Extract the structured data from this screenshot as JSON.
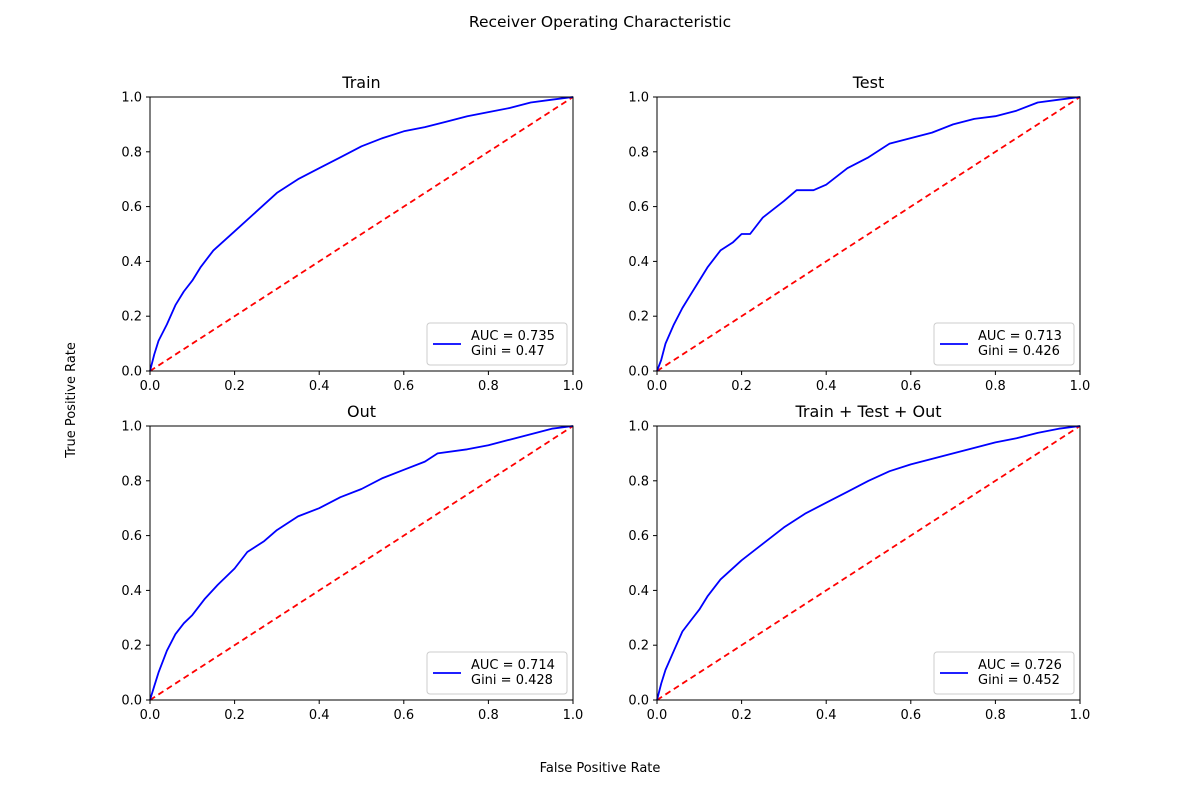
{
  "figure": {
    "title": "Receiver Operating Characteristic",
    "xlabel": "False Positive Rate",
    "ylabel": "True Positive Rate"
  },
  "colors": {
    "roc_line": "#0000ff",
    "reference_line": "#ff0000"
  },
  "chart_data": [
    {
      "type": "line",
      "title": "Train",
      "xlim": [
        0,
        1
      ],
      "ylim": [
        0,
        1
      ],
      "x_ticks": [
        "0.0",
        "0.2",
        "0.4",
        "0.6",
        "0.8",
        "1.0"
      ],
      "y_ticks": [
        "0.0",
        "0.2",
        "0.4",
        "0.6",
        "0.8",
        "1.0"
      ],
      "legend": {
        "placement": "lower-right",
        "lines": [
          "AUC = 0.735",
          "Gini = 0.47"
        ]
      },
      "series": [
        {
          "name": "AUC = 0.735",
          "x": [
            0,
            0.01,
            0.02,
            0.04,
            0.06,
            0.08,
            0.1,
            0.12,
            0.15,
            0.2,
            0.25,
            0.3,
            0.35,
            0.4,
            0.45,
            0.5,
            0.55,
            0.6,
            0.65,
            0.7,
            0.75,
            0.8,
            0.85,
            0.9,
            0.95,
            1.0
          ],
          "y": [
            0,
            0.06,
            0.11,
            0.17,
            0.24,
            0.29,
            0.33,
            0.38,
            0.44,
            0.51,
            0.58,
            0.65,
            0.7,
            0.74,
            0.78,
            0.82,
            0.85,
            0.875,
            0.89,
            0.91,
            0.93,
            0.945,
            0.96,
            0.98,
            0.99,
            1.0
          ]
        },
        {
          "name": "",
          "x": [
            0,
            1
          ],
          "y": [
            0,
            1
          ]
        }
      ]
    },
    {
      "type": "line",
      "title": "Test",
      "xlim": [
        0,
        1
      ],
      "ylim": [
        0,
        1
      ],
      "x_ticks": [
        "0.0",
        "0.2",
        "0.4",
        "0.6",
        "0.8",
        "1.0"
      ],
      "y_ticks": [
        "0.0",
        "0.2",
        "0.4",
        "0.6",
        "0.8",
        "1.0"
      ],
      "legend": {
        "placement": "lower-right",
        "lines": [
          "AUC = 0.713",
          "Gini = 0.426"
        ]
      },
      "series": [
        {
          "name": "AUC = 0.713",
          "x": [
            0,
            0.01,
            0.02,
            0.04,
            0.06,
            0.08,
            0.1,
            0.12,
            0.15,
            0.18,
            0.2,
            0.22,
            0.25,
            0.3,
            0.33,
            0.37,
            0.4,
            0.45,
            0.5,
            0.55,
            0.6,
            0.65,
            0.7,
            0.75,
            0.8,
            0.85,
            0.9,
            0.95,
            1.0
          ],
          "y": [
            0,
            0.04,
            0.1,
            0.17,
            0.23,
            0.28,
            0.33,
            0.38,
            0.44,
            0.47,
            0.5,
            0.5,
            0.56,
            0.62,
            0.66,
            0.66,
            0.68,
            0.74,
            0.78,
            0.83,
            0.85,
            0.87,
            0.9,
            0.92,
            0.93,
            0.95,
            0.98,
            0.99,
            1.0
          ]
        },
        {
          "name": "",
          "x": [
            0,
            1
          ],
          "y": [
            0,
            1
          ]
        }
      ]
    },
    {
      "type": "line",
      "title": "Out",
      "xlim": [
        0,
        1
      ],
      "ylim": [
        0,
        1
      ],
      "x_ticks": [
        "0.0",
        "0.2",
        "0.4",
        "0.6",
        "0.8",
        "1.0"
      ],
      "y_ticks": [
        "0.0",
        "0.2",
        "0.4",
        "0.6",
        "0.8",
        "1.0"
      ],
      "legend": {
        "placement": "lower-right",
        "lines": [
          "AUC = 0.714",
          "Gini = 0.428"
        ]
      },
      "series": [
        {
          "name": "AUC = 0.714",
          "x": [
            0,
            0.01,
            0.02,
            0.04,
            0.06,
            0.08,
            0.1,
            0.13,
            0.16,
            0.2,
            0.23,
            0.27,
            0.3,
            0.35,
            0.4,
            0.45,
            0.5,
            0.55,
            0.6,
            0.65,
            0.68,
            0.75,
            0.8,
            0.85,
            0.9,
            0.95,
            1.0
          ],
          "y": [
            0,
            0.05,
            0.1,
            0.18,
            0.24,
            0.28,
            0.31,
            0.37,
            0.42,
            0.48,
            0.54,
            0.58,
            0.62,
            0.67,
            0.7,
            0.74,
            0.77,
            0.81,
            0.84,
            0.87,
            0.9,
            0.915,
            0.93,
            0.95,
            0.97,
            0.99,
            1.0
          ]
        },
        {
          "name": "",
          "x": [
            0,
            1
          ],
          "y": [
            0,
            1
          ]
        }
      ]
    },
    {
      "type": "line",
      "title": "Train + Test + Out",
      "xlim": [
        0,
        1
      ],
      "ylim": [
        0,
        1
      ],
      "x_ticks": [
        "0.0",
        "0.2",
        "0.4",
        "0.6",
        "0.8",
        "1.0"
      ],
      "y_ticks": [
        "0.0",
        "0.2",
        "0.4",
        "0.6",
        "0.8",
        "1.0"
      ],
      "legend": {
        "placement": "lower-right",
        "lines": [
          "AUC = 0.726",
          "Gini = 0.452"
        ]
      },
      "series": [
        {
          "name": "AUC = 0.726",
          "x": [
            0,
            0.01,
            0.02,
            0.04,
            0.06,
            0.08,
            0.1,
            0.12,
            0.15,
            0.2,
            0.25,
            0.3,
            0.35,
            0.4,
            0.45,
            0.5,
            0.55,
            0.6,
            0.65,
            0.7,
            0.75,
            0.8,
            0.85,
            0.9,
            0.95,
            1.0
          ],
          "y": [
            0,
            0.06,
            0.11,
            0.18,
            0.25,
            0.29,
            0.33,
            0.38,
            0.44,
            0.51,
            0.57,
            0.63,
            0.68,
            0.72,
            0.76,
            0.8,
            0.835,
            0.86,
            0.88,
            0.9,
            0.92,
            0.94,
            0.955,
            0.975,
            0.99,
            1.0
          ]
        },
        {
          "name": "",
          "x": [
            0,
            1
          ],
          "y": [
            0,
            1
          ]
        }
      ]
    }
  ]
}
